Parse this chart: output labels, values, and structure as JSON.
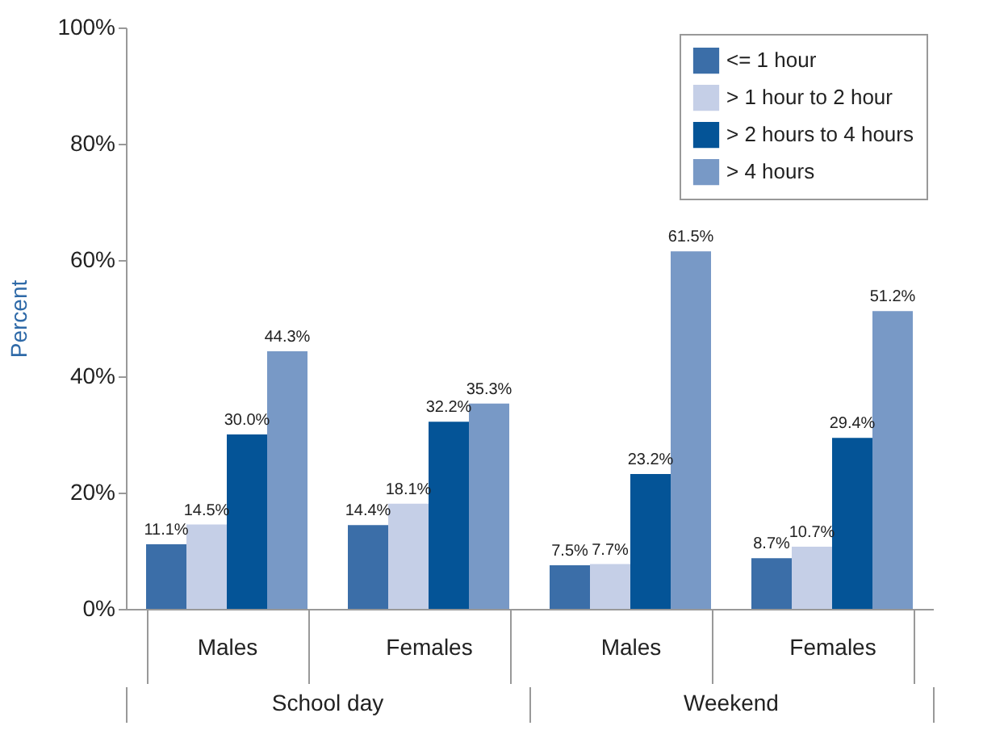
{
  "chart_data": {
    "type": "bar",
    "ylabel": "Percent",
    "categories": [
      "Males",
      "Females",
      "Males",
      "Females"
    ],
    "series": [
      {
        "name": "<= 1 hour",
        "color": "#3b6ea8",
        "values": [
          11.1,
          14.4,
          7.5,
          8.7
        ],
        "value_labels": [
          "11.1%",
          "14.4%",
          "7.5%",
          "8.7%"
        ]
      },
      {
        "name": "> 1 hour to 2 hour",
        "color": "#c5cfe7",
        "values": [
          14.5,
          18.1,
          7.7,
          10.7
        ],
        "value_labels": [
          "14.5%",
          "18.1%",
          "7.7%",
          "10.7%"
        ]
      },
      {
        "name": "> 2 hours to 4 hours",
        "color": "#045497",
        "values": [
          30.0,
          32.2,
          23.2,
          29.4
        ],
        "value_labels": [
          "30.0%",
          "32.2%",
          "23.2%",
          "29.4%"
        ]
      },
      {
        "name": "> 4 hours",
        "color": "#7899c6",
        "values": [
          44.3,
          35.3,
          61.5,
          51.2
        ],
        "value_labels": [
          "44.3%",
          "35.3%",
          "61.5%",
          "51.2%"
        ]
      }
    ],
    "ylim": [
      0,
      100
    ],
    "yticks": [
      {
        "value": 0,
        "label": "0%"
      },
      {
        "value": 20,
        "label": "20%"
      },
      {
        "value": 40,
        "label": "40%"
      },
      {
        "value": 60,
        "label": "60%"
      },
      {
        "value": 80,
        "label": "80%"
      },
      {
        "value": 100,
        "label": "100%"
      }
    ],
    "annotations": [
      "School day",
      "Weekend"
    ],
    "grid": false,
    "legend": "top right"
  }
}
